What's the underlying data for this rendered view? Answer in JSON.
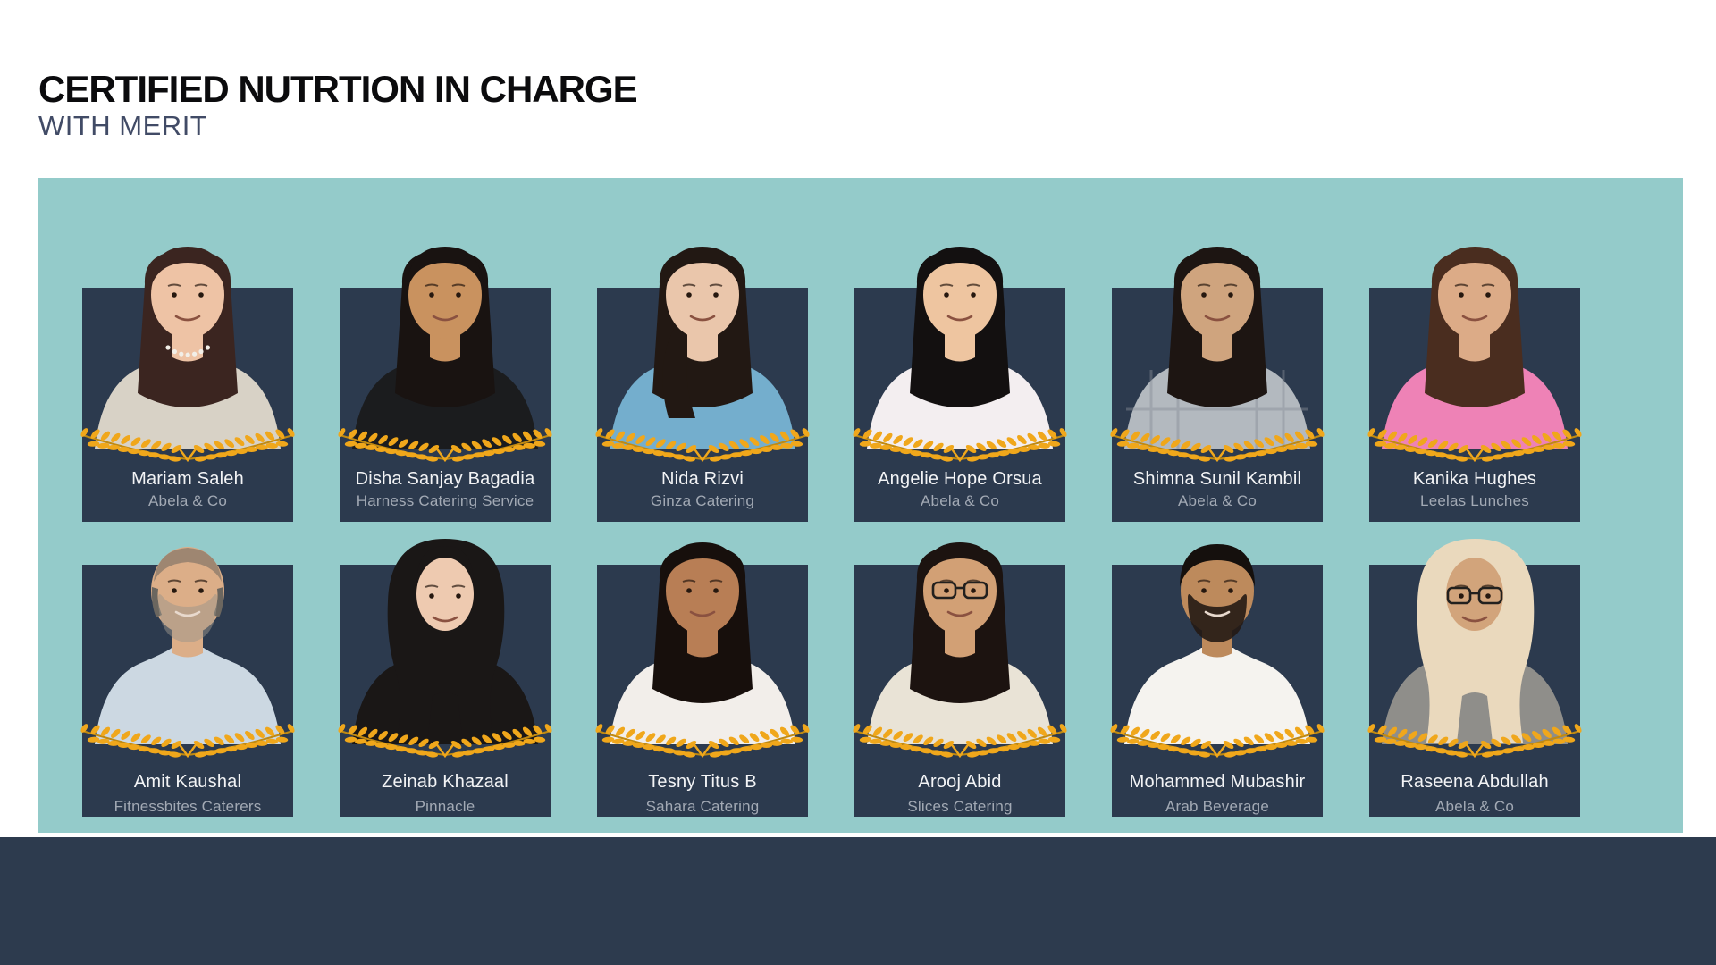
{
  "header": {
    "title": "CERTIFIED NUTRTION IN CHARGE",
    "subtitle": "WITH MERIT"
  },
  "colors": {
    "panel": "#94cbca",
    "card": "#2c3a4e",
    "footer": "#2d3b4e",
    "title_text": "#0b0b0d",
    "subtitle_text": "#414b66",
    "name_text": "#f3f4f6",
    "company_text": "#a2a9b4",
    "laurel": "#f0a71b",
    "laurel_dark": "#c08a12"
  },
  "icons": {
    "laurel": "laurel-wreath-icon"
  },
  "people": [
    {
      "name": "Mariam Saleh",
      "company": "Abela & Co",
      "avatar": {
        "style": "long",
        "skin": "#eec3a5",
        "hair": "#3b2520",
        "top": "#d8d2c6",
        "inner": "#242c38",
        "pearls": true
      }
    },
    {
      "name": "Disha Sanjay Bagadia",
      "company": "Harness Catering Service",
      "avatar": {
        "style": "long",
        "skin": "#c9925f",
        "hair": "#191311",
        "top": "#1b1c1e"
      }
    },
    {
      "name": "Nida Rizvi",
      "company": "Ginza Catering",
      "avatar": {
        "style": "ponytail",
        "skin": "#eac6ab",
        "hair": "#221813",
        "top": "#74aecd"
      }
    },
    {
      "name": "Angelie Hope Orsua",
      "company": "Abela & Co",
      "avatar": {
        "style": "long",
        "skin": "#eec5a0",
        "hair": "#131010",
        "top": "#f3eef0"
      }
    },
    {
      "name": "Shimna Sunil Kambil",
      "company": "Abela & Co",
      "avatar": {
        "style": "long",
        "skin": "#cfa47e",
        "hair": "#1d1512",
        "top": "#b3b9bf",
        "inner": "#f4f4f4",
        "plaid": true
      }
    },
    {
      "name": "Kanika Hughes",
      "company": "Leelas Lunches",
      "avatar": {
        "style": "long",
        "skin": "#dcab87",
        "hair": "#4a2d1f",
        "top": "#ee82b6"
      }
    },
    {
      "name": "Amit Kaushal",
      "company": "Fitnessbites Caterers",
      "avatar": {
        "style": "bald",
        "skin": "#dcae88",
        "hair": "#6b665f",
        "beard": "#9a938a",
        "top": "#ccd8e2"
      }
    },
    {
      "name": "Zeinab Khazaal",
      "company": "Pinnacle",
      "avatar": {
        "style": "hijab",
        "skin": "#eecab0",
        "hijab": "#1a1716",
        "top": "#1a1716"
      }
    },
    {
      "name": "Tesny Titus B",
      "company": "Sahara Catering",
      "avatar": {
        "style": "long",
        "skin": "#b87e55",
        "hair": "#170f0c",
        "top": "#f2eeea"
      }
    },
    {
      "name": "Arooj Abid",
      "company": "Slices Catering",
      "avatar": {
        "style": "long",
        "skin": "#d2a075",
        "hair": "#1c1310",
        "glasses": true,
        "top": "#e9e3d6",
        "inner": "#2a2e35"
      }
    },
    {
      "name": "Mohammed Mubashir",
      "company": "Arab Beverage",
      "avatar": {
        "style": "short",
        "skin": "#bd8a5c",
        "hair": "#15100d",
        "beard": "#241a14",
        "top": "#f5f3ef"
      }
    },
    {
      "name": "Raseena Abdullah",
      "company": "Abela & Co",
      "avatar": {
        "style": "hijab",
        "skin": "#d2a47b",
        "hijab": "#ead9bd",
        "glasses": true,
        "top": "#8f8e8a"
      }
    }
  ]
}
